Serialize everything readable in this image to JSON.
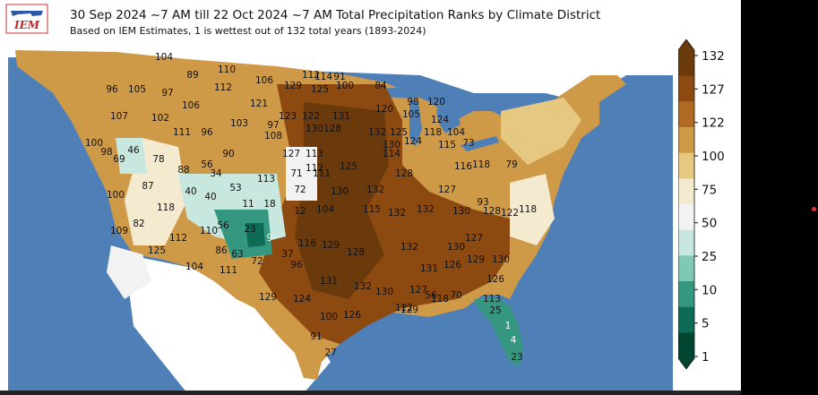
{
  "header": {
    "logo_text": "IEM",
    "title": "30 Sep 2024 ~7 AM till 22 Oct 2024 ~7 AM Total Precipitation Ranks by Climate District",
    "subtitle": "Based on IEM Estimates, 1 is wettest out of 132 total years (1893-2024)"
  },
  "colorbar": {
    "ticks": [
      "132",
      "127",
      "122",
      "100",
      "75",
      "50",
      "25",
      "10",
      "5",
      "1"
    ],
    "colors": [
      "#6b3a0c",
      "#8c4a10",
      "#b06a22",
      "#cf9a48",
      "#e6c880",
      "#f3ead0",
      "#f2f2f2",
      "#c8e8df",
      "#7fc8b5",
      "#35977f",
      "#0e6b55",
      "#00452f"
    ]
  },
  "colors": {
    "ocean": "#4f7fb7",
    "land_outside": "#ffffff",
    "water": "#4f7fb7"
  },
  "districts": [
    {
      "r": "104"
    },
    {
      "r": "89"
    },
    {
      "r": "110"
    },
    {
      "r": "112"
    },
    {
      "r": "114"
    },
    {
      "r": "91"
    },
    {
      "r": "100"
    },
    {
      "r": "84"
    },
    {
      "r": "96"
    },
    {
      "r": "105"
    },
    {
      "r": "97"
    },
    {
      "r": "112"
    },
    {
      "r": "106"
    },
    {
      "r": "129"
    },
    {
      "r": "125"
    },
    {
      "r": "98"
    },
    {
      "r": "120"
    },
    {
      "r": "107"
    },
    {
      "r": "102"
    },
    {
      "r": "106"
    },
    {
      "r": "121"
    },
    {
      "r": "123"
    },
    {
      "r": "122"
    },
    {
      "r": "131"
    },
    {
      "r": "120"
    },
    {
      "r": "105"
    },
    {
      "r": "124"
    },
    {
      "r": "111"
    },
    {
      "r": "96"
    },
    {
      "r": "103"
    },
    {
      "r": "97"
    },
    {
      "r": "130"
    },
    {
      "r": "128"
    },
    {
      "r": "132"
    },
    {
      "r": "125"
    },
    {
      "r": "118"
    },
    {
      "r": "104"
    },
    {
      "r": "100"
    },
    {
      "r": "98"
    },
    {
      "r": "46"
    },
    {
      "r": "78"
    },
    {
      "r": "88"
    },
    {
      "r": "56"
    },
    {
      "r": "90"
    },
    {
      "r": "108"
    },
    {
      "r": "127"
    },
    {
      "r": "113"
    },
    {
      "r": "130"
    },
    {
      "r": "124"
    },
    {
      "r": "115"
    },
    {
      "r": "73"
    },
    {
      "r": "69"
    },
    {
      "r": "87"
    },
    {
      "r": "34"
    },
    {
      "r": "53"
    },
    {
      "r": "113"
    },
    {
      "r": "71"
    },
    {
      "r": "112"
    },
    {
      "r": "125"
    },
    {
      "r": "114"
    },
    {
      "r": "128"
    },
    {
      "r": "116"
    },
    {
      "r": "118"
    },
    {
      "r": "79"
    },
    {
      "r": "100"
    },
    {
      "r": "40"
    },
    {
      "r": "40"
    },
    {
      "r": "11"
    },
    {
      "r": "18"
    },
    {
      "r": "72"
    },
    {
      "r": "111"
    },
    {
      "r": "130"
    },
    {
      "r": "132"
    },
    {
      "r": "127"
    },
    {
      "r": "93"
    },
    {
      "r": "82"
    },
    {
      "r": "118"
    },
    {
      "r": "110"
    },
    {
      "r": "56"
    },
    {
      "r": "23"
    },
    {
      "r": "9"
    },
    {
      "r": "12"
    },
    {
      "r": "104"
    },
    {
      "r": "115"
    },
    {
      "r": "132"
    },
    {
      "r": "132"
    },
    {
      "r": "130"
    },
    {
      "r": "128"
    },
    {
      "r": "122"
    },
    {
      "r": "118"
    },
    {
      "r": "109"
    },
    {
      "r": "112"
    },
    {
      "r": "86"
    },
    {
      "r": "63"
    },
    {
      "r": "72"
    },
    {
      "r": "37"
    },
    {
      "r": "116"
    },
    {
      "r": "129"
    },
    {
      "r": "128"
    },
    {
      "r": "132"
    },
    {
      "r": "130"
    },
    {
      "r": "127"
    },
    {
      "r": "125"
    },
    {
      "r": "104"
    },
    {
      "r": "111"
    },
    {
      "r": "96"
    },
    {
      "r": "131"
    },
    {
      "r": "132"
    },
    {
      "r": "131"
    },
    {
      "r": "126"
    },
    {
      "r": "129"
    },
    {
      "r": "130"
    },
    {
      "r": "129"
    },
    {
      "r": "124"
    },
    {
      "r": "130"
    },
    {
      "r": "127"
    },
    {
      "r": "122"
    },
    {
      "r": "118"
    },
    {
      "r": "126"
    },
    {
      "r": "91"
    },
    {
      "r": "100"
    },
    {
      "r": "126"
    },
    {
      "r": "129"
    },
    {
      "r": "56"
    },
    {
      "r": "70"
    },
    {
      "r": "113"
    },
    {
      "r": "25"
    },
    {
      "r": "1"
    },
    {
      "r": "4"
    },
    {
      "r": "23"
    },
    {
      "r": "27"
    },
    {
      "r": "22"
    }
  ]
}
